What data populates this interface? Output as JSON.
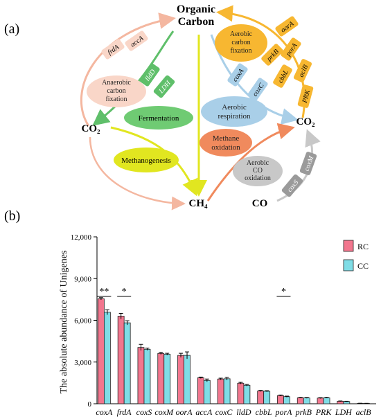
{
  "panel_a": {
    "label": "(a)",
    "nodes": {
      "organic_carbon": "Organic\nCarbon",
      "co2_left": "CO₂",
      "co2_right": "CO₂",
      "ch4": "CH₄",
      "co": "CO"
    },
    "processes": {
      "anaerobic_fixation": "Anaerobic\ncarbon\nfixation",
      "fermentation": "Fermentation",
      "methanogenesis": "Methanogenesis",
      "aerobic_fixation": "Aerobic\ncarbon\nfixation",
      "aerobic_respiration": "Aerobic\nrespiration",
      "methane_oxidation": "Methane\noxidation",
      "aerobic_co_oxidation": "Aerobic\nCO\noxidation"
    },
    "genes": {
      "frdA": "frdA",
      "accA": "accA",
      "lldD": "lldD",
      "LDH": "LDH",
      "oorA": "oorA",
      "porA": "porA",
      "prkB": "prkB",
      "aclB": "aclB",
      "cbbL": "cbbL",
      "PRK": "PRK",
      "coxA": "coxA",
      "coxC": "coxC",
      "coxM": "coxM",
      "coxS": "coxS"
    },
    "colors": {
      "salmon": "#f4b7a0",
      "green": "#5fbf6a",
      "orange": "#f7b731",
      "blue": "#a9cfe8",
      "coral": "#f08a5d",
      "gray": "#c8c8c8",
      "yellow": "#e1e620",
      "fermentation": "#6fcb73"
    }
  },
  "chart_data": {
    "type": "bar",
    "panel_label": "(b)",
    "ylabel": "The absolute abundance of Unigenes",
    "ylim": [
      0,
      12000
    ],
    "yticks": [
      "0",
      "3,000",
      "6,000",
      "9,000",
      "12,000"
    ],
    "yticks_values": [
      0,
      3000,
      6000,
      9000,
      12000
    ],
    "categories": [
      "coxA",
      "frdA",
      "coxS",
      "coxM",
      "oorA",
      "accA",
      "coxC",
      "lldD",
      "cbbL",
      "porA",
      "prkB",
      "PRK",
      "LDH",
      "aclB"
    ],
    "series": [
      {
        "name": "RC",
        "color": "#f2768e",
        "values": [
          7550,
          6300,
          4050,
          3620,
          3480,
          1870,
          1780,
          1480,
          920,
          590,
          430,
          410,
          180,
          30
        ]
      },
      {
        "name": "CC",
        "color": "#7fdde6",
        "values": [
          6580,
          5820,
          3920,
          3560,
          3480,
          1680,
          1800,
          1330,
          900,
          510,
          420,
          430,
          160,
          25
        ]
      }
    ],
    "errors": {
      "RC": [
        80,
        200,
        220,
        80,
        150,
        50,
        60,
        60,
        40,
        40,
        30,
        30,
        20,
        10
      ],
      "CC": [
        180,
        150,
        80,
        70,
        250,
        100,
        100,
        60,
        40,
        40,
        30,
        30,
        20,
        10
      ]
    },
    "significance": [
      {
        "category": "coxA",
        "label": "**"
      },
      {
        "category": "frdA",
        "label": "*"
      },
      {
        "category": "porA",
        "label": "*"
      }
    ],
    "legend": [
      "RC",
      "CC"
    ],
    "legend_position": "top-right",
    "grid": false
  }
}
